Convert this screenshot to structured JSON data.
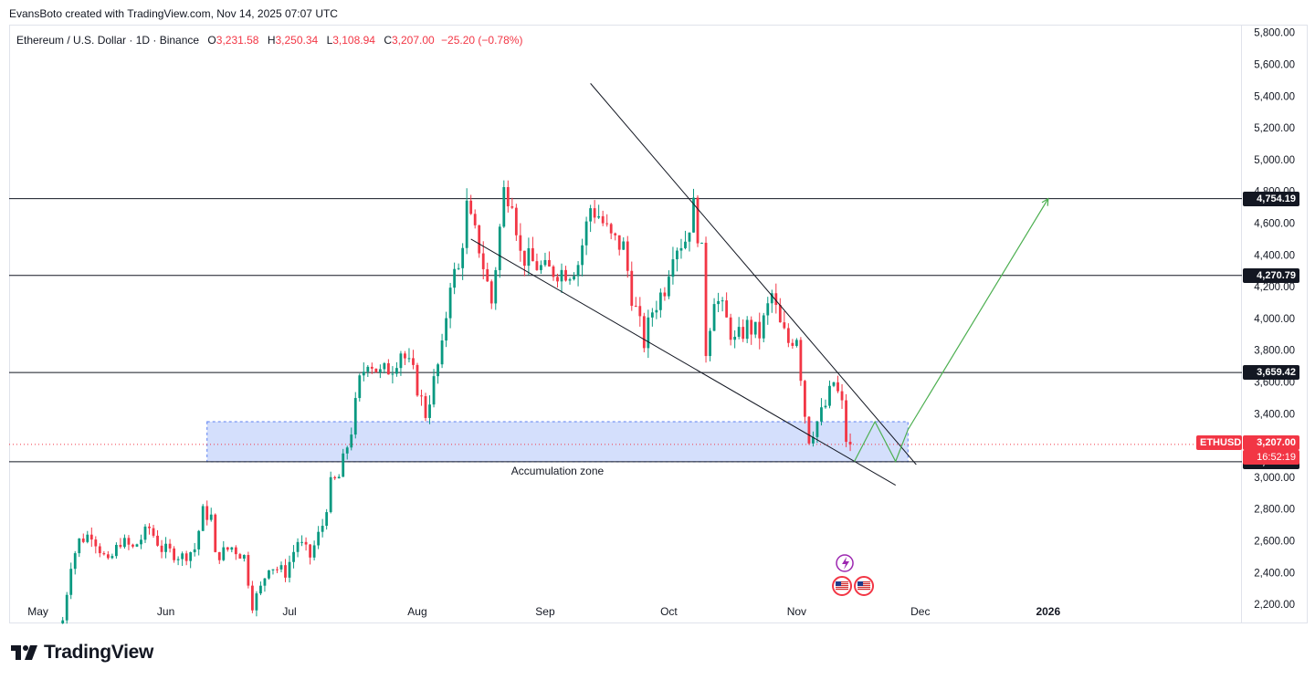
{
  "caption": "EvansBoto created with TradingView.com, Nov 14, 2025 07:07 UTC",
  "legend": {
    "symbol": "Ethereum / U.S. Dollar · 1D · Binance",
    "o_label": "O",
    "o_value": "3,231.58",
    "h_label": "H",
    "h_value": "3,250.34",
    "l_label": "L",
    "l_value": "3,108.94",
    "c_label": "C",
    "c_value": "3,207.00",
    "change": "−25.20 (−0.78%)"
  },
  "brand": {
    "name": "TradingView",
    "logo_icon": "tradingview-logo-icon"
  },
  "colors": {
    "up": "#089981",
    "down": "#f23645",
    "zone": "#c9d7fb",
    "projection": "#4caf50"
  },
  "chart_data": {
    "type": "candlestick",
    "y_axis_ticks": [
      "5,800.00",
      "5,600.00",
      "5,400.00",
      "5,200.00",
      "5,000.00",
      "4,800.00",
      "4,600.00",
      "4,400.00",
      "4,200.00",
      "4,000.00",
      "3,800.00",
      "3,600.00",
      "3,400.00",
      "3,200.00",
      "3,000.00",
      "2,800.00",
      "2,600.00",
      "2,400.00",
      "2,200.00"
    ],
    "y_tick_values": [
      5800,
      5600,
      5400,
      5200,
      5000,
      4800,
      4600,
      4400,
      4200,
      4000,
      3800,
      3600,
      3400,
      3200,
      3000,
      2800,
      2600,
      2400,
      2200
    ],
    "x_axis_labels": [
      {
        "label": "May",
        "date": "2025-05-01"
      },
      {
        "label": "Jun",
        "date": "2025-06-01"
      },
      {
        "label": "Jul",
        "date": "2025-07-01"
      },
      {
        "label": "Aug",
        "date": "2025-08-01"
      },
      {
        "label": "Sep",
        "date": "2025-09-01"
      },
      {
        "label": "Oct",
        "date": "2025-10-01"
      },
      {
        "label": "Nov",
        "date": "2025-11-01"
      },
      {
        "label": "Dec",
        "date": "2025-12-01"
      },
      {
        "label": "2026",
        "date": "2026-01-01"
      }
    ],
    "ylim": [
      2080,
      5850
    ],
    "xlim": [
      "2025-04-24",
      "2026-02-17"
    ],
    "close_path": [
      [
        "2025-05-07",
        2100
      ],
      [
        "2025-05-09",
        2460
      ],
      [
        "2025-05-11",
        2600
      ],
      [
        "2025-05-14",
        2650
      ],
      [
        "2025-05-18",
        2450
      ],
      [
        "2025-05-21",
        2600
      ],
      [
        "2025-05-24",
        2550
      ],
      [
        "2025-05-28",
        2680
      ],
      [
        "2025-05-31",
        2550
      ],
      [
        "2025-06-05",
        2500
      ],
      [
        "2025-06-08",
        2550
      ],
      [
        "2025-06-10",
        2780
      ],
      [
        "2025-06-12",
        2750
      ],
      [
        "2025-06-13",
        2500
      ],
      [
        "2025-06-17",
        2560
      ],
      [
        "2025-06-20",
        2500
      ],
      [
        "2025-06-22",
        2200
      ],
      [
        "2025-06-24",
        2300
      ],
      [
        "2025-06-26",
        2450
      ],
      [
        "2025-06-30",
        2400
      ],
      [
        "2025-07-03",
        2600
      ],
      [
        "2025-07-06",
        2500
      ],
      [
        "2025-07-09",
        2700
      ],
      [
        "2025-07-11",
        2950
      ],
      [
        "2025-07-13",
        3000
      ],
      [
        "2025-07-16",
        3300
      ],
      [
        "2025-07-18",
        3600
      ],
      [
        "2025-07-20",
        3750
      ],
      [
        "2025-07-23",
        3650
      ],
      [
        "2025-07-26",
        3700
      ],
      [
        "2025-07-28",
        3800
      ],
      [
        "2025-07-31",
        3650
      ],
      [
        "2025-08-03",
        3400
      ],
      [
        "2025-08-05",
        3600
      ],
      [
        "2025-08-07",
        3800
      ],
      [
        "2025-08-09",
        4250
      ],
      [
        "2025-08-11",
        4300
      ],
      [
        "2025-08-13",
        4700
      ],
      [
        "2025-08-14",
        4600
      ],
      [
        "2025-08-16",
        4450
      ],
      [
        "2025-08-19",
        4100
      ],
      [
        "2025-08-22",
        4800
      ],
      [
        "2025-08-24",
        4780
      ],
      [
        "2025-08-26",
        4400
      ],
      [
        "2025-08-29",
        4350
      ],
      [
        "2025-09-01",
        4300
      ],
      [
        "2025-09-04",
        4300
      ],
      [
        "2025-09-07",
        4300
      ],
      [
        "2025-09-09",
        4350
      ],
      [
        "2025-09-12",
        4700
      ],
      [
        "2025-09-14",
        4650
      ],
      [
        "2025-09-17",
        4500
      ],
      [
        "2025-09-20",
        4450
      ],
      [
        "2025-09-22",
        4150
      ],
      [
        "2025-09-25",
        3850
      ],
      [
        "2025-09-27",
        4050
      ],
      [
        "2025-09-30",
        4200
      ],
      [
        "2025-10-02",
        4450
      ],
      [
        "2025-10-05",
        4500
      ],
      [
        "2025-10-07",
        4700
      ],
      [
        "2025-10-09",
        4400
      ],
      [
        "2025-10-10",
        3800
      ],
      [
        "2025-10-12",
        4150
      ],
      [
        "2025-10-14",
        4050
      ],
      [
        "2025-10-17",
        3850
      ],
      [
        "2025-10-20",
        3950
      ],
      [
        "2025-10-23",
        3900
      ],
      [
        "2025-10-26",
        4150
      ],
      [
        "2025-10-28",
        3950
      ],
      [
        "2025-10-30",
        3850
      ],
      [
        "2025-11-01",
        3900
      ],
      [
        "2025-11-03",
        3400
      ],
      [
        "2025-11-04",
        3250
      ],
      [
        "2025-11-06",
        3350
      ],
      [
        "2025-11-08",
        3450
      ],
      [
        "2025-11-10",
        3600
      ],
      [
        "2025-11-12",
        3450
      ],
      [
        "2025-11-13",
        3240
      ],
      [
        "2025-11-14",
        3207
      ]
    ],
    "candle_seed": 7,
    "horizontal_levels": [
      {
        "value": 4754.19,
        "label": "4,754.19"
      },
      {
        "value": 4270.79,
        "label": "4,270.79"
      },
      {
        "value": 3659.42,
        "label": "3,659.42"
      },
      {
        "value": 3097.81,
        "label": "3,097.81"
      }
    ],
    "current_price": {
      "value": 3207.0,
      "label": "3,207.00",
      "symbol": "ETHUSD",
      "countdown": "16:52:19"
    },
    "accumulation_zone": {
      "label": "Accumulation zone",
      "from": "2025-06-11",
      "to": "2025-11-28",
      "low": 3097.81,
      "high": 3350
    },
    "trendlines": [
      {
        "name": "upper-wedge-line",
        "from": [
          "2025-09-12",
          5480
        ],
        "to": [
          "2025-11-30",
          3080
        ]
      },
      {
        "name": "lower-wedge-line",
        "from": [
          "2025-08-14",
          4500
        ],
        "to": [
          "2025-11-25",
          2950
        ]
      }
    ],
    "projection_path": [
      [
        "2025-11-15",
        3100
      ],
      [
        "2025-11-20",
        3350
      ],
      [
        "2025-11-25",
        3100
      ],
      [
        "2025-11-28",
        3300
      ],
      [
        "2026-01-01",
        4754.19
      ]
    ]
  }
}
